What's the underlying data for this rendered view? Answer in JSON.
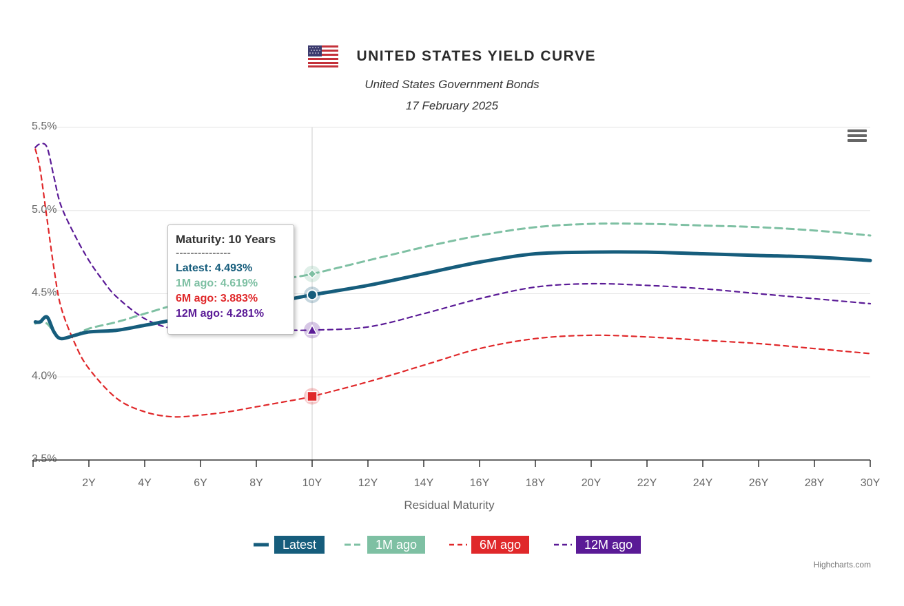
{
  "header": {
    "title": "UNITED STATES YIELD CURVE",
    "subtitle": "United States Government Bonds",
    "date": "17 February 2025",
    "flag_icon": "us-flag-icon"
  },
  "menu": {
    "icon": "hamburger-menu-icon"
  },
  "tooltip": {
    "heading": "Maturity: 10 Years",
    "separator": "---------------",
    "lines": [
      {
        "text": "Latest: 4.493%",
        "color": "#165d7c"
      },
      {
        "text": "1M ago: 4.619%",
        "color": "#7ec0a3"
      },
      {
        "text": "6M ago: 3.883%",
        "color": "#e0282a"
      },
      {
        "text": "12M ago: 4.281%",
        "color": "#5a1a96"
      }
    ]
  },
  "legend": [
    {
      "label": "Latest",
      "color": "#165d7c",
      "style": "solid"
    },
    {
      "label": "1M ago",
      "color": "#7ec0a3",
      "style": "dash"
    },
    {
      "label": "6M ago",
      "color": "#e0282a",
      "style": "dash"
    },
    {
      "label": "12M ago",
      "color": "#5a1a96",
      "style": "dash"
    }
  ],
  "credits": "Highcharts.com",
  "chart_data": {
    "type": "line",
    "title": "UNITED STATES YIELD CURVE",
    "subtitle": "United States Government Bonds",
    "xlabel": "Residual Maturity",
    "ylabel": "",
    "xlim": [
      0,
      30
    ],
    "ylim": [
      3.5,
      5.5
    ],
    "x_ticks": [
      2,
      4,
      6,
      8,
      10,
      12,
      14,
      16,
      18,
      20,
      22,
      24,
      26,
      28,
      30
    ],
    "x_tick_labels": [
      "2Y",
      "4Y",
      "6Y",
      "8Y",
      "10Y",
      "12Y",
      "14Y",
      "16Y",
      "18Y",
      "20Y",
      "22Y",
      "24Y",
      "26Y",
      "28Y",
      "30Y"
    ],
    "y_ticks": [
      3.5,
      4.0,
      4.5,
      5.0,
      5.5
    ],
    "y_tick_labels": [
      "3.5%",
      "4.0%",
      "4.5%",
      "5.0%",
      "5.5%"
    ],
    "grid": true,
    "legend_position": "bottom-center",
    "crosshair_x": 10,
    "series": [
      {
        "name": "Latest",
        "color": "#165d7c",
        "dash": false,
        "marker": "circle",
        "highlight": 4.493,
        "points": [
          [
            0.08,
            4.33
          ],
          [
            0.25,
            4.33
          ],
          [
            0.5,
            4.36
          ],
          [
            0.75,
            4.27
          ],
          [
            1,
            4.23
          ],
          [
            1.5,
            4.25
          ],
          [
            2,
            4.27
          ],
          [
            3,
            4.28
          ],
          [
            4,
            4.31
          ],
          [
            5,
            4.34
          ],
          [
            6,
            4.36
          ],
          [
            7,
            4.39
          ],
          [
            8,
            4.42
          ],
          [
            9,
            4.46
          ],
          [
            10,
            4.493
          ],
          [
            12,
            4.55
          ],
          [
            14,
            4.62
          ],
          [
            16,
            4.69
          ],
          [
            18,
            4.74
          ],
          [
            20,
            4.75
          ],
          [
            22,
            4.75
          ],
          [
            24,
            4.74
          ],
          [
            26,
            4.73
          ],
          [
            28,
            4.72
          ],
          [
            30,
            4.7
          ]
        ]
      },
      {
        "name": "1M ago",
        "color": "#7ec0a3",
        "dash": true,
        "marker": "diamond",
        "highlight": 4.619,
        "points": [
          [
            0.08,
            4.32
          ],
          [
            0.25,
            4.33
          ],
          [
            0.5,
            4.32
          ],
          [
            0.75,
            4.27
          ],
          [
            1,
            4.23
          ],
          [
            1.5,
            4.25
          ],
          [
            2,
            4.29
          ],
          [
            3,
            4.33
          ],
          [
            4,
            4.38
          ],
          [
            5,
            4.43
          ],
          [
            6,
            4.48
          ],
          [
            7,
            4.52
          ],
          [
            8,
            4.56
          ],
          [
            9,
            4.59
          ],
          [
            10,
            4.619
          ],
          [
            12,
            4.7
          ],
          [
            14,
            4.78
          ],
          [
            16,
            4.85
          ],
          [
            18,
            4.9
          ],
          [
            20,
            4.92
          ],
          [
            22,
            4.92
          ],
          [
            24,
            4.91
          ],
          [
            26,
            4.9
          ],
          [
            28,
            4.88
          ],
          [
            30,
            4.85
          ]
        ]
      },
      {
        "name": "6M ago",
        "color": "#e0282a",
        "dash": true,
        "marker": "square",
        "highlight": 3.883,
        "points": [
          [
            0.08,
            5.37
          ],
          [
            0.25,
            5.25
          ],
          [
            0.5,
            4.95
          ],
          [
            0.75,
            4.65
          ],
          [
            1,
            4.42
          ],
          [
            1.5,
            4.2
          ],
          [
            2,
            4.05
          ],
          [
            3,
            3.87
          ],
          [
            4,
            3.79
          ],
          [
            5,
            3.76
          ],
          [
            6,
            3.77
          ],
          [
            7,
            3.79
          ],
          [
            8,
            3.82
          ],
          [
            9,
            3.85
          ],
          [
            10,
            3.883
          ],
          [
            12,
            3.97
          ],
          [
            14,
            4.07
          ],
          [
            16,
            4.17
          ],
          [
            18,
            4.23
          ],
          [
            20,
            4.25
          ],
          [
            22,
            4.24
          ],
          [
            24,
            4.22
          ],
          [
            26,
            4.2
          ],
          [
            28,
            4.17
          ],
          [
            30,
            4.14
          ]
        ]
      },
      {
        "name": "12M ago",
        "color": "#5a1a96",
        "dash": true,
        "marker": "triangle",
        "highlight": 4.281,
        "points": [
          [
            0.08,
            5.38
          ],
          [
            0.25,
            5.4
          ],
          [
            0.5,
            5.38
          ],
          [
            0.75,
            5.2
          ],
          [
            1,
            5.03
          ],
          [
            1.5,
            4.85
          ],
          [
            2,
            4.7
          ],
          [
            2.5,
            4.58
          ],
          [
            3,
            4.48
          ],
          [
            4,
            4.35
          ],
          [
            5,
            4.29
          ],
          [
            6,
            4.28
          ],
          [
            7,
            4.27
          ],
          [
            8,
            4.27
          ],
          [
            9,
            4.28
          ],
          [
            10,
            4.281
          ],
          [
            12,
            4.3
          ],
          [
            14,
            4.38
          ],
          [
            16,
            4.47
          ],
          [
            18,
            4.54
          ],
          [
            20,
            4.56
          ],
          [
            22,
            4.55
          ],
          [
            24,
            4.53
          ],
          [
            26,
            4.5
          ],
          [
            28,
            4.47
          ],
          [
            30,
            4.44
          ]
        ]
      }
    ]
  }
}
